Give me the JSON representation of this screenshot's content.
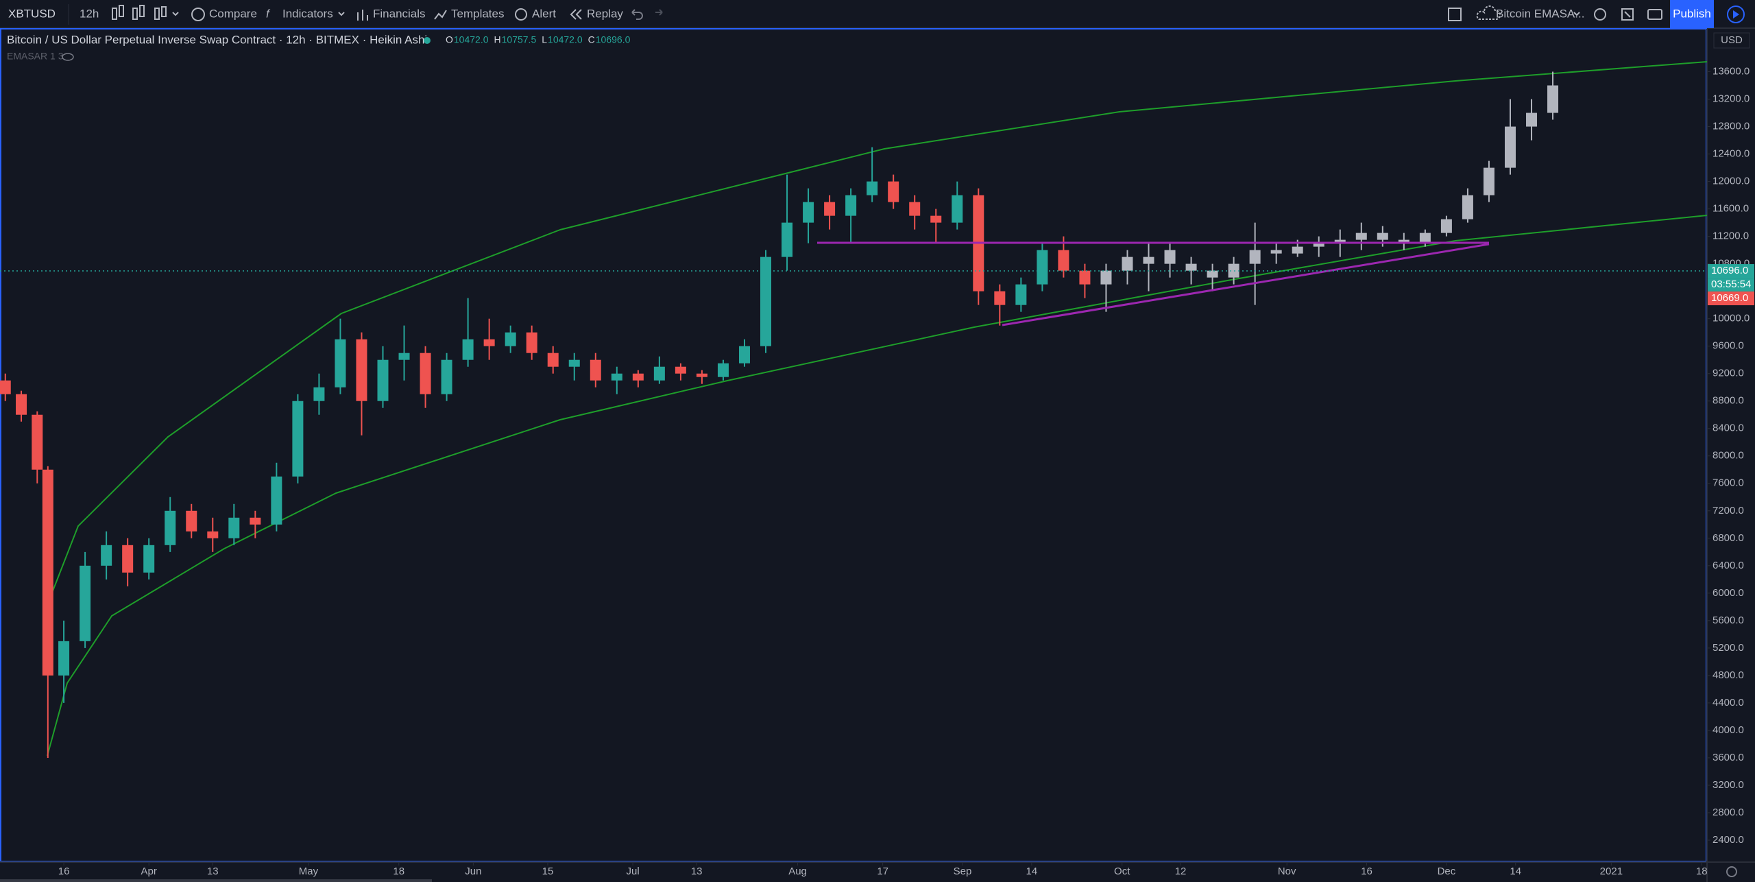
{
  "toolbar": {
    "symbol": "XBTUSD",
    "interval": "12h",
    "items": [
      "Compare",
      "Indicators",
      "Financials",
      "Templates",
      "Alert",
      "Replay"
    ],
    "layout_name": "Bitcoin EMASA...",
    "publish": "Publish"
  },
  "legend": {
    "study": "EMASAR 1 3",
    "ohlc": [
      {
        "key": "O",
        "value": "10472.0"
      },
      {
        "key": "H",
        "value": "10757.5"
      },
      {
        "key": "L",
        "value": "10472.0"
      },
      {
        "key": "C",
        "value": "10696.0"
      }
    ]
  },
  "chart_data": {
    "type": "candlestick",
    "title": "Bitcoin / US Dollar Perpetual Inverse Swap Contract · 12h · BITMEX · Heikin Ashi",
    "currency": "USD",
    "up_color": "#26a69a",
    "down_color": "#ef5350",
    "ylim": [
      2080,
      14235
    ],
    "yticks": [
      {
        "value": 2400,
        "label": "2400.0"
      },
      {
        "value": 2800,
        "label": "2800.0"
      },
      {
        "value": 3200,
        "label": "3200.0"
      },
      {
        "value": 3600,
        "label": "3600.0"
      },
      {
        "value": 4000,
        "label": "4000.0"
      },
      {
        "value": 4400,
        "label": "4400.0"
      },
      {
        "value": 4800,
        "label": "4800.0"
      },
      {
        "value": 5200,
        "label": "5200.0"
      },
      {
        "value": 5600,
        "label": "5600.0"
      },
      {
        "value": 6000,
        "label": "6000.0"
      },
      {
        "value": 6400,
        "label": "6400.0"
      },
      {
        "value": 6800,
        "label": "6800.0"
      },
      {
        "value": 7200,
        "label": "7200.0"
      },
      {
        "value": 7600,
        "label": "7600.0"
      },
      {
        "value": 8000,
        "label": "8000.0"
      },
      {
        "value": 8400,
        "label": "8400.0"
      },
      {
        "value": 8800,
        "label": "8800.0"
      },
      {
        "value": 9200,
        "label": "9200.0"
      },
      {
        "value": 9600,
        "label": "9600.0"
      },
      {
        "value": 10000,
        "label": "10000.0"
      },
      {
        "value": 10800,
        "label": "10800.0"
      },
      {
        "value": 11200,
        "label": "11200.0"
      },
      {
        "value": 11600,
        "label": "11600.0"
      },
      {
        "value": 12000,
        "label": "12000.0"
      },
      {
        "value": 12400,
        "label": "12400.0"
      },
      {
        "value": 12800,
        "label": "12800.0"
      },
      {
        "value": 13200,
        "label": "13200.0"
      },
      {
        "value": 13600,
        "label": "13600.0"
      }
    ],
    "xlim": [
      64,
      385
    ],
    "xticks": [
      {
        "value": 76,
        "label": "16"
      },
      {
        "value": 92,
        "label": "Apr"
      },
      {
        "value": 104,
        "label": "13"
      },
      {
        "value": 122,
        "label": "May"
      },
      {
        "value": 139,
        "label": "18"
      },
      {
        "value": 153,
        "label": "Jun"
      },
      {
        "value": 167,
        "label": "15"
      },
      {
        "value": 183,
        "label": "Jul"
      },
      {
        "value": 195,
        "label": "13"
      },
      {
        "value": 214,
        "label": "Aug"
      },
      {
        "value": 230,
        "label": "17"
      },
      {
        "value": 245,
        "label": "Sep"
      },
      {
        "value": 258,
        "label": "14"
      },
      {
        "value": 275,
        "label": "Oct"
      },
      {
        "value": 286,
        "label": "12"
      },
      {
        "value": 306,
        "label": "Nov"
      },
      {
        "value": 321,
        "label": "16"
      },
      {
        "value": 336,
        "label": "Dec"
      },
      {
        "value": 349,
        "label": "14"
      },
      {
        "value": 367,
        "label": "2021"
      },
      {
        "value": 384,
        "label": "18"
      }
    ],
    "candles": {
      "x": [
        65,
        68,
        71,
        73,
        76,
        80,
        84,
        88,
        92,
        96,
        100,
        104,
        108,
        112,
        116,
        120,
        124,
        128,
        132,
        136,
        140,
        144,
        148,
        152,
        156,
        160,
        164,
        168,
        172,
        176,
        180,
        184,
        188,
        192,
        196,
        200,
        204,
        208,
        212,
        216,
        220,
        224,
        228,
        232,
        236,
        240,
        244,
        248,
        252,
        256,
        260,
        264,
        268
      ],
      "open": [
        9100,
        8900,
        8600,
        7800,
        4800,
        5300,
        6400,
        6700,
        6300,
        6700,
        7200,
        6900,
        6800,
        7100,
        7000,
        7700,
        8800,
        9000,
        9700,
        8800,
        9400,
        9500,
        8900,
        9400,
        9700,
        9600,
        9800,
        9500,
        9300,
        9400,
        9100,
        9200,
        9100,
        9300,
        9200,
        9150,
        9350,
        9600,
        10900,
        11400,
        11700,
        11500,
        11800,
        12000,
        11700,
        11500,
        11400,
        11800,
        10400,
        10200,
        10500,
        11000,
        10700
      ],
      "high": [
        9200,
        8950,
        8650,
        7850,
        5600,
        6600,
        6900,
        6800,
        6800,
        7400,
        7300,
        7100,
        7300,
        7200,
        7900,
        8900,
        9200,
        10000,
        9800,
        9600,
        9900,
        9600,
        9500,
        10300,
        10000,
        9900,
        9900,
        9600,
        9500,
        9500,
        9300,
        9250,
        9450,
        9350,
        9250,
        9400,
        9700,
        11000,
        12100,
        11900,
        11800,
        11900,
        12500,
        12100,
        11800,
        11600,
        12000,
        11900,
        10500,
        10600,
        11100,
        11200,
        10800
      ],
      "low": [
        8800,
        8500,
        7600,
        3600,
        4400,
        5200,
        6200,
        6100,
        6200,
        6600,
        6800,
        6600,
        6700,
        6800,
        6900,
        7600,
        8600,
        8900,
        8300,
        8700,
        9100,
        8700,
        8800,
        9300,
        9400,
        9500,
        9400,
        9200,
        9100,
        9000,
        8900,
        9000,
        9050,
        9100,
        9050,
        9100,
        9300,
        9500,
        10700,
        11100,
        11300,
        11100,
        11700,
        11600,
        11300,
        11100,
        11300,
        10200,
        9900,
        10100,
        10400,
        10600,
        10300
      ],
      "close": [
        8900,
        8600,
        7800,
        4800,
        5300,
        6400,
        6700,
        6300,
        6700,
        7200,
        6900,
        6800,
        7100,
        7000,
        7700,
        8800,
        9000,
        9700,
        8800,
        9400,
        9500,
        8900,
        9400,
        9700,
        9600,
        9800,
        9500,
        9300,
        9400,
        9100,
        9200,
        9100,
        9300,
        9200,
        9150,
        9350,
        9600,
        10900,
        11400,
        11700,
        11500,
        11800,
        12000,
        11700,
        11500,
        11400,
        11800,
        10400,
        10200,
        10500,
        11000,
        10700,
        10500
      ]
    },
    "projection": {
      "color": "#b2b5be",
      "x": [
        272,
        276,
        280,
        284,
        288,
        292,
        296,
        300,
        304,
        308,
        312,
        316,
        320,
        324,
        328,
        332,
        336,
        340,
        344,
        348,
        352,
        356
      ],
      "open": [
        10500,
        10700,
        10900,
        10800,
        10800,
        10700,
        10600,
        10800,
        11000,
        10950,
        11050,
        11100,
        11150,
        11250,
        11150,
        11100,
        11250,
        11450,
        11800,
        12200,
        12800,
        13000
      ],
      "high": [
        10800,
        11000,
        11100,
        11100,
        10900,
        10800,
        10900,
        11400,
        11100,
        11150,
        11200,
        11300,
        11400,
        11350,
        11250,
        11300,
        11500,
        11900,
        12300,
        13200,
        13200,
        13600
      ],
      "low": [
        10100,
        10500,
        10400,
        10600,
        10500,
        10400,
        10500,
        10200,
        10800,
        10900,
        10900,
        10900,
        11000,
        11050,
        11000,
        11050,
        11200,
        11400,
        11700,
        12100,
        12600,
        12900
      ],
      "close": [
        10700,
        10900,
        10800,
        11000,
        10700,
        10600,
        10800,
        11000,
        10950,
        11050,
        11100,
        11150,
        11250,
        11150,
        11100,
        11250,
        11450,
        11800,
        12200,
        12800,
        13000,
        13400
      ]
    },
    "price_labels": [
      {
        "value": 10696,
        "label": "10696.0",
        "color": "#26a69a"
      },
      {
        "value": 10669,
        "label": "10669.0",
        "color": "#ef5350"
      }
    ],
    "countdown": "03:55:54"
  }
}
